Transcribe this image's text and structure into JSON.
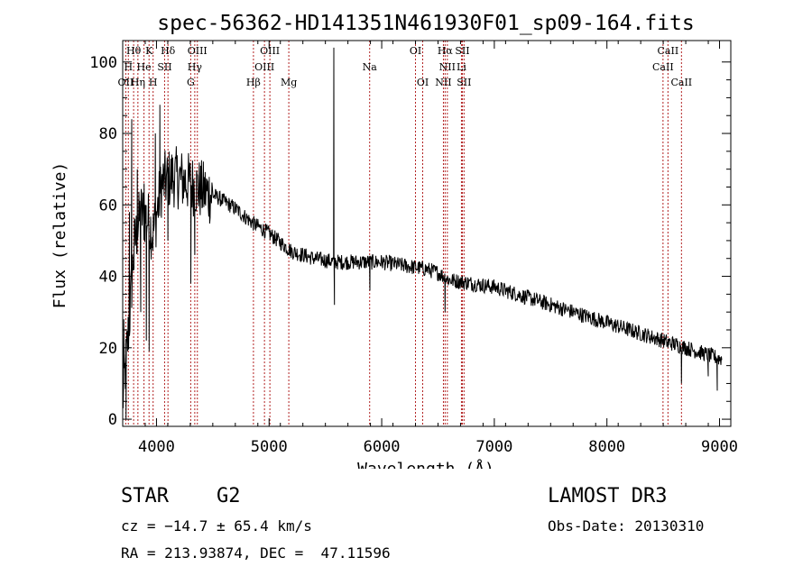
{
  "chart_data": {
    "type": "line",
    "title": "spec-56362-HD141351N461930F01_sp09-164.fits",
    "xlabel": "Wavelength (Å)",
    "ylabel": "Flux (relative)",
    "xlim": [
      3700,
      9100
    ],
    "ylim": [
      -2,
      106
    ],
    "xticks": [
      4000,
      5000,
      6000,
      7000,
      8000,
      9000
    ],
    "yticks": [
      0,
      20,
      40,
      60,
      80,
      100
    ],
    "grid": false,
    "line_color": "#000000",
    "marker_color": "#b22222",
    "spectrum_trend": {
      "x": [
        3700,
        3760,
        3800,
        3860,
        3920,
        3970,
        4050,
        4150,
        4300,
        4400,
        4550,
        4700,
        4850,
        5000,
        5200,
        5400,
        5600,
        5800,
        6000,
        6200,
        6400,
        6500,
        6600,
        6800,
        7000,
        7200,
        7400,
        7600,
        7800,
        8000,
        8200,
        8400,
        8600,
        8800,
        9000
      ],
      "y": [
        5,
        28,
        48,
        58,
        56,
        52,
        66,
        68,
        66,
        64,
        62,
        59,
        55,
        52,
        47,
        45,
        44,
        44,
        44,
        43,
        42,
        41,
        39,
        38,
        37,
        35,
        33,
        31,
        29,
        27,
        25,
        23,
        21,
        19,
        17
      ],
      "noise": 2.2
    },
    "spikes": [
      {
        "x": 3710,
        "y": 28
      },
      {
        "x": 3730,
        "y": 0
      },
      {
        "x": 3760,
        "y": 58
      },
      {
        "x": 3780,
        "y": 84
      },
      {
        "x": 3800,
        "y": 42
      },
      {
        "x": 3830,
        "y": 70
      },
      {
        "x": 3860,
        "y": 30
      },
      {
        "x": 3890,
        "y": 66
      },
      {
        "x": 3910,
        "y": 22
      },
      {
        "x": 3935,
        "y": 19
      },
      {
        "x": 3960,
        "y": 48
      },
      {
        "x": 3990,
        "y": 80
      },
      {
        "x": 4030,
        "y": 88
      },
      {
        "x": 4101,
        "y": 50
      },
      {
        "x": 4305,
        "y": 38
      },
      {
        "x": 4340,
        "y": 46
      },
      {
        "x": 5575,
        "y": 104
      },
      {
        "x": 5580,
        "y": 32
      },
      {
        "x": 5895,
        "y": 36
      },
      {
        "x": 6563,
        "y": 30
      },
      {
        "x": 8542,
        "y": 20
      },
      {
        "x": 8662,
        "y": 10
      },
      {
        "x": 8900,
        "y": 12
      },
      {
        "x": 8980,
        "y": 8
      }
    ],
    "lines": [
      {
        "label": "Hθ",
        "x": 3797,
        "row": 0
      },
      {
        "label": "K",
        "x": 3934,
        "row": 0
      },
      {
        "label": "Hδ",
        "x": 4102,
        "row": 0
      },
      {
        "label": "OIII",
        "x": 4363,
        "row": 0
      },
      {
        "label": "OIII",
        "x": 5007,
        "row": 0
      },
      {
        "label": "OI",
        "x": 6300,
        "row": 0
      },
      {
        "label": "Hα",
        "x": 6563,
        "row": 0
      },
      {
        "label": "SII",
        "x": 6716,
        "row": 0
      },
      {
        "label": "CaII",
        "x": 8542,
        "row": 0
      },
      {
        "label": "H",
        "x": 3750,
        "row": 1
      },
      {
        "label": "He",
        "x": 3889,
        "row": 1
      },
      {
        "label": "SII",
        "x": 4072,
        "row": 1
      },
      {
        "label": "Hγ",
        "x": 4340,
        "row": 1
      },
      {
        "label": "OIII",
        "x": 4959,
        "row": 1
      },
      {
        "label": "Na",
        "x": 5893,
        "row": 1
      },
      {
        "label": "NII",
        "x": 6583,
        "row": 1
      },
      {
        "label": "Li",
        "x": 6708,
        "row": 1
      },
      {
        "label": "CaII",
        "x": 8498,
        "row": 1
      },
      {
        "label": "OII",
        "x": 3727,
        "row": 2
      },
      {
        "label": "Hη",
        "x": 3835,
        "row": 2
      },
      {
        "label": "H",
        "x": 3970,
        "row": 2
      },
      {
        "label": "G",
        "x": 4304,
        "row": 2
      },
      {
        "label": "Hβ",
        "x": 4861,
        "row": 2
      },
      {
        "label": "Mg",
        "x": 5175,
        "row": 2
      },
      {
        "label": "OI",
        "x": 6364,
        "row": 2
      },
      {
        "label": "NII",
        "x": 6548,
        "row": 2
      },
      {
        "label": "SII",
        "x": 6731,
        "row": 2
      },
      {
        "label": "CaII",
        "x": 8662,
        "row": 2
      }
    ]
  },
  "info": {
    "object_class": "STAR",
    "subclass": "G2",
    "survey": "LAMOST DR3",
    "redshift": "cz = −14.7 ± 65.4 km/s",
    "obs_date": "Obs-Date: 20130310",
    "coords": "RA = 213.93874, DEC =  47.11596"
  }
}
